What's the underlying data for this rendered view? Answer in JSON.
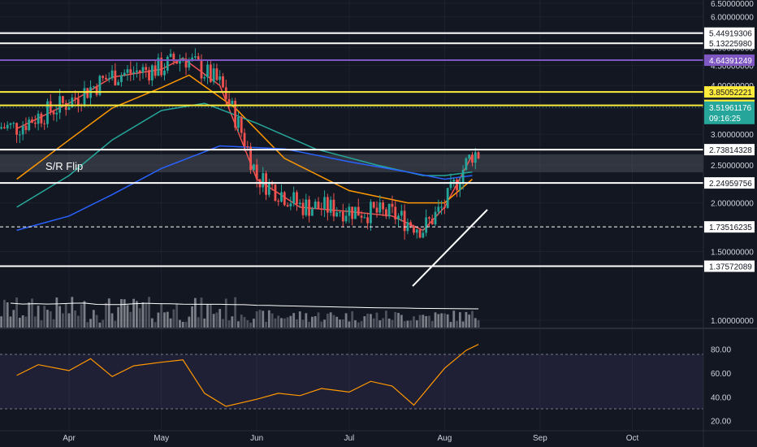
{
  "chart_data": [
    {
      "type": "candlestick",
      "annotation": "S/R Flip",
      "x_ticks": [
        "Apr",
        "May",
        "Jun",
        "Jul",
        "Aug",
        "Sep",
        "Oct"
      ],
      "y_ticks": [
        "6.50000000",
        "6.00000000",
        "5.50000000",
        "5.00000000",
        "4.50000000",
        "4.00000000",
        "3.50000000",
        "3.00000000",
        "2.50000000",
        "2.00000000",
        "1.50000000",
        "1.00000000"
      ],
      "y_range": [
        1.0,
        6.5
      ],
      "horizontal_levels": [
        {
          "value": 5.44919306,
          "label": "5.44919306",
          "color": "#ffffff"
        },
        {
          "value": 5.1322598,
          "label": "5.13225980",
          "color": "#ffffff"
        },
        {
          "value": 4.64391249,
          "label": "4.64391249",
          "color": "#7e57c2"
        },
        {
          "value": 3.85052221,
          "label": "3.85052221",
          "color": "#ffeb3b"
        },
        {
          "value": 3.55659648,
          "label": "3.55659648",
          "color": "#ffeb3b"
        },
        {
          "value": 2.73814328,
          "label": "2.73814328",
          "color": "#ffffff"
        },
        {
          "value": 2.24959756,
          "label": "2.24959756",
          "color": "#ffffff"
        },
        {
          "value": 1.73516235,
          "label": "1.73516235",
          "color": "#ffffff",
          "dashed": true
        },
        {
          "value": 1.37572089,
          "label": "1.37572089",
          "color": "#ffffff"
        }
      ],
      "current_price": {
        "value": 3.51961176,
        "label": "3.51961176",
        "countdown": "09:16:25",
        "color": "#26a69a"
      },
      "series": [
        {
          "name": "",
          "color": "#ef5350",
          "x": [
            "Mar 15",
            "Apr 1",
            "Apr 15",
            "May 1",
            "May 8",
            "May 20",
            "Jun 1",
            "Jun 15",
            "Jul 1",
            "Jul 15",
            "Jul 25",
            "Aug 1",
            "Aug 10"
          ],
          "values": [
            3.1,
            3.6,
            4.2,
            4.4,
            4.7,
            4.0,
            2.3,
            1.95,
            1.9,
            1.85,
            1.7,
            1.95,
            2.65
          ]
        },
        {
          "name": "",
          "color": "#ff9800",
          "x": [
            "Mar 15",
            "Apr 1",
            "Apr 15",
            "May 1",
            "May 10",
            "May 25",
            "Jun 10",
            "Jul 1",
            "Jul 20",
            "Aug 1",
            "Aug 10"
          ],
          "values": [
            2.3,
            2.9,
            3.5,
            3.95,
            4.25,
            3.5,
            2.6,
            2.15,
            2.0,
            2.0,
            2.3
          ]
        },
        {
          "name": "",
          "color": "#26a69a",
          "x": [
            "Mar 15",
            "Apr 1",
            "Apr 15",
            "May 1",
            "May 15",
            "Jun 1",
            "Jun 20",
            "Jul 10",
            "Jul 25",
            "Aug 1",
            "Aug 10"
          ],
          "values": [
            1.95,
            2.35,
            2.9,
            3.45,
            3.6,
            3.2,
            2.75,
            2.5,
            2.35,
            2.35,
            2.4
          ]
        },
        {
          "name": "",
          "color": "#2962ff",
          "x": [
            "Mar 15",
            "Apr 1",
            "Apr 15",
            "May 1",
            "May 20",
            "Jun 10",
            "Jul 1",
            "Jul 20",
            "Aug 1",
            "Aug 10"
          ],
          "values": [
            1.7,
            1.85,
            2.1,
            2.45,
            2.8,
            2.75,
            2.55,
            2.4,
            2.3,
            2.35
          ]
        }
      ]
    },
    {
      "type": "line",
      "y_ticks": [
        "80.00",
        "60.00",
        "40.00",
        "20.00"
      ],
      "y_range": [
        17,
        92
      ],
      "bands": [
        30,
        70
      ],
      "series": [
        {
          "name": "",
          "color": "#ff9800",
          "x": [
            "Mar 15",
            "Mar 22",
            "Apr 1",
            "Apr 8",
            "Apr 15",
            "Apr 22",
            "May 1",
            "May 8",
            "May 15",
            "May 22",
            "Jun 1",
            "Jun 8",
            "Jun 15",
            "Jun 22",
            "Jul 1",
            "Jul 8",
            "Jul 15",
            "Jul 22",
            "Aug 1",
            "Aug 8",
            "Aug 12"
          ],
          "values": [
            58,
            67,
            62,
            72,
            57,
            66,
            69,
            71,
            43,
            32,
            38,
            43,
            41,
            47,
            44,
            53,
            49,
            33,
            64,
            79,
            84
          ]
        }
      ]
    }
  ]
}
